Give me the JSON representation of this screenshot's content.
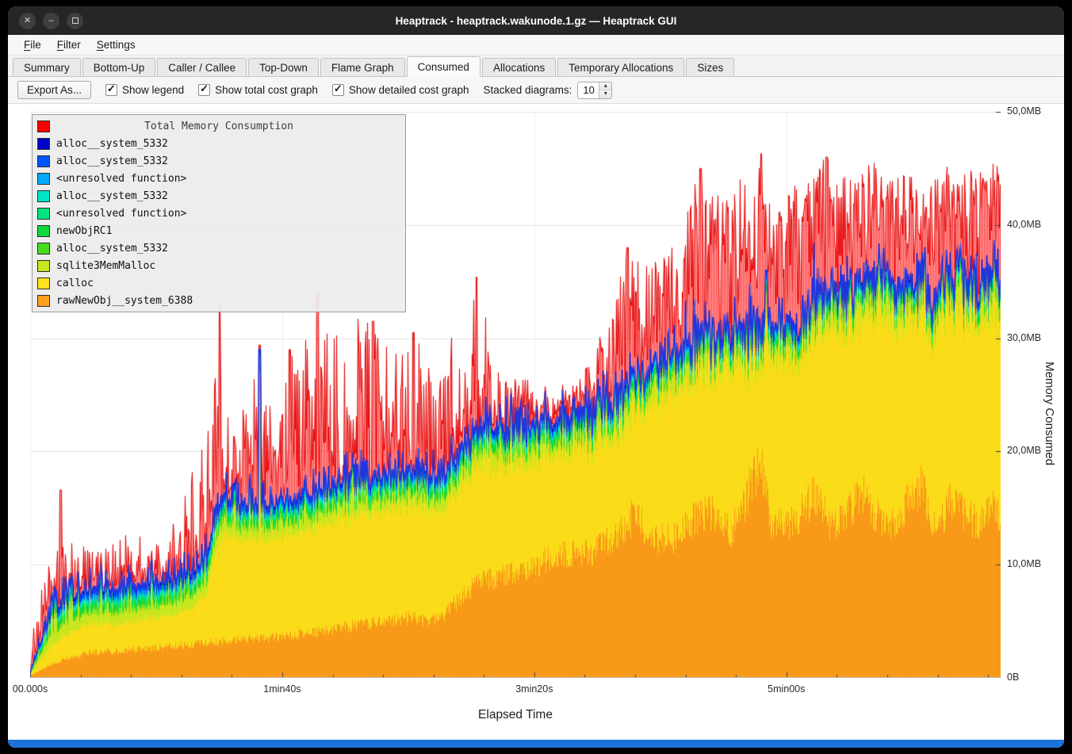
{
  "window": {
    "title": "Heaptrack - heaptrack.wakunode.1.gz — Heaptrack GUI",
    "bottom_bar_color": "#1d72d9"
  },
  "menu": {
    "items": [
      {
        "label": "File",
        "mnemonic": "F"
      },
      {
        "label": "Filter",
        "mnemonic": "F"
      },
      {
        "label": "Settings",
        "mnemonic": "S"
      }
    ]
  },
  "tabs": [
    {
      "label": "Summary",
      "active": false
    },
    {
      "label": "Bottom-Up",
      "active": false
    },
    {
      "label": "Caller / Callee",
      "active": false
    },
    {
      "label": "Top-Down",
      "active": false
    },
    {
      "label": "Flame Graph",
      "active": false
    },
    {
      "label": "Consumed",
      "active": true
    },
    {
      "label": "Allocations",
      "active": false
    },
    {
      "label": "Temporary Allocations",
      "active": false
    },
    {
      "label": "Sizes",
      "active": false
    }
  ],
  "toolbar": {
    "export_label": "Export As...",
    "checkboxes": [
      {
        "label": "Show legend",
        "checked": true
      },
      {
        "label": "Show total cost graph",
        "checked": true
      },
      {
        "label": "Show detailed cost graph",
        "checked": true
      }
    ],
    "stacked_label": "Stacked diagrams:",
    "stacked_value": "10"
  },
  "chart_data": {
    "type": "area",
    "title": "Total Memory Consumption",
    "xlabel": "Elapsed Time",
    "ylabel": "Memory Consumed",
    "x_range_s": [
      0,
      385
    ],
    "x_minor_step_s": 20,
    "x_ticks": [
      {
        "t": 0,
        "label": "00.000s"
      },
      {
        "t": 100,
        "label": "1min40s"
      },
      {
        "t": 200,
        "label": "3min20s"
      },
      {
        "t": 300,
        "label": "5min00s"
      }
    ],
    "ylim_mb": [
      0,
      50
    ],
    "y_ticks": [
      {
        "mb": 0,
        "label": "0B"
      },
      {
        "mb": 10,
        "label": "10,0MB"
      },
      {
        "mb": 20,
        "label": "20,0MB"
      },
      {
        "mb": 30,
        "label": "30,0MB"
      },
      {
        "mb": 40,
        "label": "40,0MB"
      },
      {
        "mb": 50,
        "label": "50,0MB"
      }
    ],
    "legend": [
      {
        "name": "Total Memory Consumption",
        "color": "#ff0000",
        "role": "title"
      },
      {
        "name": "alloc__system_5332",
        "color": "#0000c8"
      },
      {
        "name": "alloc__system_5332",
        "color": "#0055ff"
      },
      {
        "name": "<unresolved function>",
        "color": "#00aaff"
      },
      {
        "name": "alloc__system_5332",
        "color": "#00e6c8"
      },
      {
        "name": "<unresolved function>",
        "color": "#00e67d"
      },
      {
        "name": "newObjRC1",
        "color": "#0fd73c"
      },
      {
        "name": "alloc__system_5332",
        "color": "#46dc1e"
      },
      {
        "name": "sqlite3MemMalloc",
        "color": "#c8e61e"
      },
      {
        "name": "calloc",
        "color": "#ffe11e"
      },
      {
        "name": "rawNewObj__system_6388",
        "color": "#ffa01e"
      }
    ],
    "seed": 1337,
    "colors": {
      "orange": "#ffa01e",
      "orange2": "#f49314",
      "yellow": "#ffe11e",
      "yellow2": "#f5d714",
      "sqlite3": "#c8e61e",
      "stack_outline": "#1f35e0",
      "grid": "#e4e4e4",
      "grid_v": "#f0f0f0",
      "tick": "#3c3c3c"
    },
    "series": {
      "orange_kf": [
        [
          0,
          0.2
        ],
        [
          8,
          1.2
        ],
        [
          15,
          1.8
        ],
        [
          25,
          2.3
        ],
        [
          35,
          2.4
        ],
        [
          45,
          2.6
        ],
        [
          55,
          2.8
        ],
        [
          65,
          3.0
        ],
        [
          72,
          3.2
        ],
        [
          80,
          3.3
        ],
        [
          90,
          3.5
        ],
        [
          100,
          3.7
        ],
        [
          110,
          4.0
        ],
        [
          120,
          4.3
        ],
        [
          130,
          4.7
        ],
        [
          140,
          5.0
        ],
        [
          150,
          5.3
        ],
        [
          158,
          5.1
        ],
        [
          165,
          5.8
        ],
        [
          172,
          7.5
        ],
        [
          180,
          8.6
        ],
        [
          190,
          9.2
        ],
        [
          200,
          9.8
        ],
        [
          208,
          10.9
        ],
        [
          216,
          11.1
        ],
        [
          224,
          11.0
        ],
        [
          232,
          12.8
        ],
        [
          240,
          14.3
        ],
        [
          247,
          12.6
        ],
        [
          254,
          12.2
        ],
        [
          262,
          13.8
        ],
        [
          270,
          14.8
        ],
        [
          278,
          12.9
        ],
        [
          284,
          15.8
        ],
        [
          290,
          19.3
        ],
        [
          294,
          13.2
        ],
        [
          300,
          13.6
        ],
        [
          306,
          14.6
        ],
        [
          312,
          16.4
        ],
        [
          318,
          13.2
        ],
        [
          324,
          14.1
        ],
        [
          330,
          16.7
        ],
        [
          336,
          14.2
        ],
        [
          342,
          13.6
        ],
        [
          348,
          15.4
        ],
        [
          354,
          16.9
        ],
        [
          358,
          14.2
        ],
        [
          362,
          13.9
        ],
        [
          366,
          15.8
        ],
        [
          371,
          14.6
        ],
        [
          376,
          13.7
        ],
        [
          381,
          15.3
        ],
        [
          385,
          14.2
        ]
      ],
      "yellow_kf": [
        [
          0,
          0.1
        ],
        [
          8,
          1.6
        ],
        [
          15,
          2.2
        ],
        [
          25,
          2.6
        ],
        [
          35,
          2.4
        ],
        [
          45,
          2.7
        ],
        [
          55,
          2.7
        ],
        [
          65,
          3.3
        ],
        [
          70,
          4.4
        ],
        [
          74,
          8.9
        ],
        [
          78,
          9.6
        ],
        [
          85,
          8.7
        ],
        [
          95,
          8.6
        ],
        [
          105,
          9.0
        ],
        [
          114,
          9.3
        ],
        [
          125,
          9.6
        ],
        [
          136,
          9.8
        ],
        [
          146,
          9.9
        ],
        [
          156,
          9.8
        ],
        [
          165,
          9.4
        ],
        [
          172,
          9.9
        ],
        [
          180,
          10.3
        ],
        [
          190,
          9.6
        ],
        [
          200,
          9.3
        ],
        [
          209,
          9.2
        ],
        [
          218,
          9.4
        ],
        [
          228,
          9.1
        ],
        [
          235,
          8.9
        ],
        [
          240,
          9.2
        ],
        [
          247,
          12.0
        ],
        [
          254,
          13.2
        ],
        [
          262,
          13.0
        ],
        [
          270,
          12.3
        ],
        [
          278,
          14.7
        ],
        [
          284,
          12.0
        ],
        [
          290,
          8.8
        ],
        [
          294,
          14.6
        ],
        [
          300,
          14.5
        ],
        [
          306,
          13.6
        ],
        [
          312,
          15.2
        ],
        [
          318,
          17.2
        ],
        [
          324,
          16.8
        ],
        [
          330,
          15.4
        ],
        [
          336,
          17.9
        ],
        [
          342,
          18.6
        ],
        [
          348,
          15.9
        ],
        [
          354,
          15.6
        ],
        [
          358,
          16.4
        ],
        [
          362,
          18.0
        ],
        [
          366,
          16.6
        ],
        [
          371,
          17.4
        ],
        [
          376,
          18.2
        ],
        [
          381,
          16.9
        ],
        [
          385,
          18.3
        ]
      ],
      "sqlite3_mb": 0.7,
      "teeth_prob": 0.3,
      "thin": [
        {
          "name": "alloc__system_5332",
          "color": "#46dc1e",
          "mb": 0.3
        },
        {
          "name": "newObjRC1",
          "color": "#0fd73c",
          "mb": 0.45
        },
        {
          "name": "<unresolved function>",
          "color": "#00e67d",
          "mb": 0.2
        },
        {
          "name": "alloc__system_5332",
          "color": "#00e6c8",
          "mb": 0.25
        },
        {
          "name": "<unresolved function>",
          "color": "#00aaff",
          "mb": 0.15
        },
        {
          "name": "alloc__system_5332",
          "color": "#0055ff",
          "mb": 0.4
        },
        {
          "name": "alloc__system_5332",
          "color": "#0000c8",
          "mb": 0.2
        }
      ],
      "stack_spikes": [
        [
          91,
          29
        ],
        [
          292,
          36
        ]
      ]
    },
    "red": {
      "base_offset": 0.4,
      "peak_kf": [
        [
          0,
          3
        ],
        [
          5,
          9
        ],
        [
          12,
          16.6
        ],
        [
          18,
          11
        ],
        [
          25,
          13
        ],
        [
          32,
          12
        ],
        [
          40,
          13.5
        ],
        [
          48,
          12
        ],
        [
          56,
          14
        ],
        [
          63,
          17
        ],
        [
          70,
          24
        ],
        [
          75,
          33
        ],
        [
          80,
          22
        ],
        [
          86,
          25
        ],
        [
          91,
          29
        ],
        [
          97,
          24
        ],
        [
          103,
          29
        ],
        [
          110,
          30
        ],
        [
          114,
          34
        ],
        [
          120,
          30
        ],
        [
          128,
          32
        ],
        [
          136,
          31.5
        ],
        [
          144,
          29
        ],
        [
          152,
          30.5
        ],
        [
          160,
          28
        ],
        [
          168,
          31
        ],
        [
          177,
          35.4
        ],
        [
          184,
          29
        ],
        [
          192,
          27
        ],
        [
          200,
          26
        ],
        [
          209,
          24.5
        ],
        [
          218,
          27
        ],
        [
          228,
          31
        ],
        [
          237,
          38
        ],
        [
          245,
          37
        ],
        [
          252,
          38
        ],
        [
          258,
          40
        ],
        [
          266,
          45
        ],
        [
          274,
          44
        ],
        [
          282,
          45.5
        ],
        [
          290,
          46.3
        ],
        [
          296,
          41
        ],
        [
          302,
          43
        ],
        [
          308,
          45
        ],
        [
          316,
          46
        ],
        [
          322,
          44
        ],
        [
          328,
          45.5
        ],
        [
          335,
          45.5
        ],
        [
          342,
          44
        ],
        [
          350,
          45
        ],
        [
          356,
          43
        ],
        [
          362,
          45.5
        ],
        [
          368,
          44.5
        ],
        [
          374,
          45
        ],
        [
          380,
          45.5
        ],
        [
          385,
          45.5
        ]
      ],
      "power_kf": [
        [
          0,
          3
        ],
        [
          60,
          3
        ],
        [
          70,
          1.6
        ],
        [
          110,
          1.8
        ],
        [
          150,
          2.2
        ],
        [
          200,
          2.4
        ],
        [
          235,
          1.4
        ],
        [
          260,
          1.0
        ],
        [
          290,
          0.7
        ],
        [
          300,
          0.8
        ],
        [
          385,
          0.75
        ]
      ],
      "spikes": [
        [
          12,
          16.6
        ],
        [
          75,
          33
        ],
        [
          103,
          29
        ],
        [
          114,
          34
        ],
        [
          136,
          31.5
        ],
        [
          152,
          30.5
        ],
        [
          177,
          35.4
        ],
        [
          237,
          38
        ],
        [
          266,
          45
        ],
        [
          290,
          46.3
        ],
        [
          316,
          46
        ]
      ]
    }
  }
}
